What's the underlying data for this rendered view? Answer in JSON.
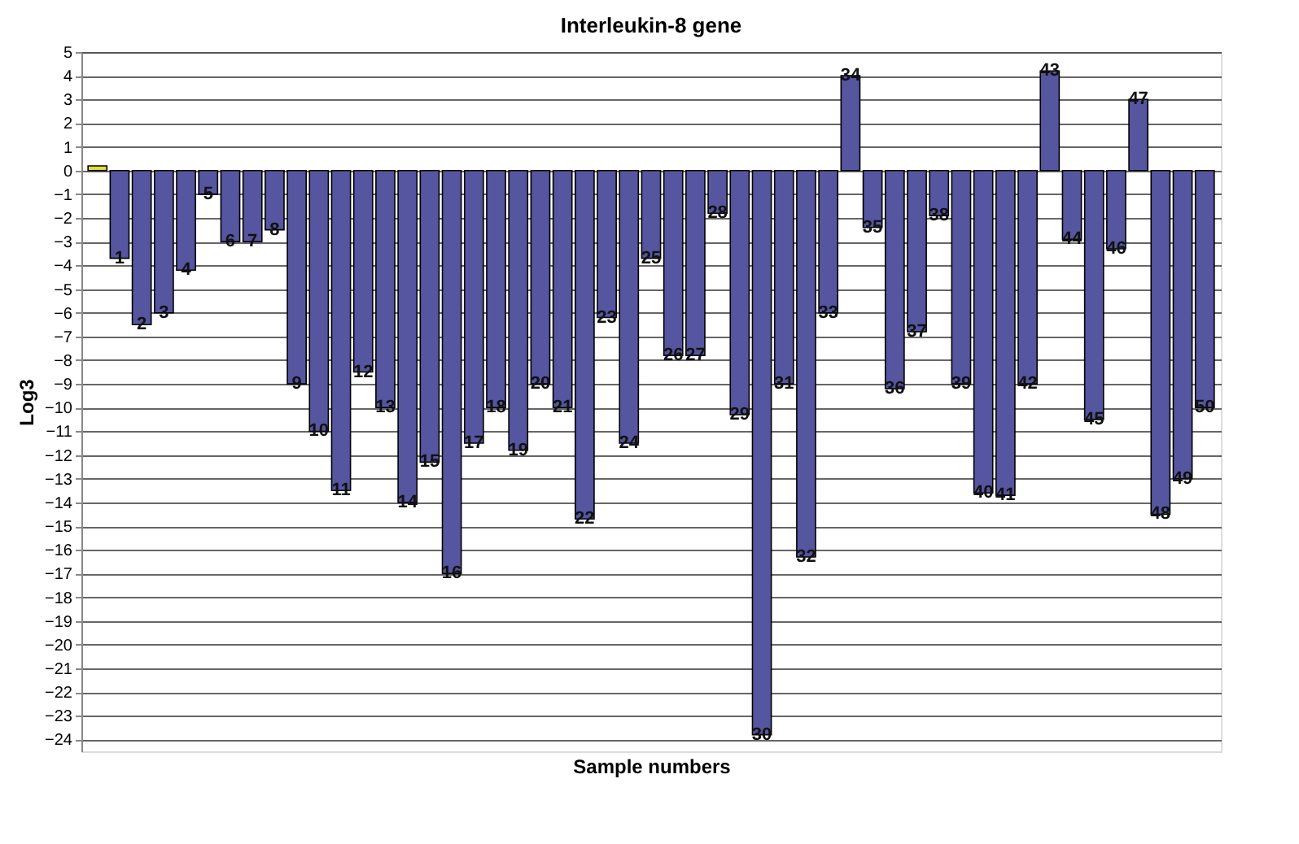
{
  "chart_data": {
    "type": "bar",
    "title": "Interleukin-8 gene",
    "xlabel": "Sample numbers",
    "ylabel": "Log3",
    "categories": [
      null,
      "1",
      "2",
      "3",
      "4",
      "5",
      "6",
      "7",
      "8",
      "9",
      "10",
      "11",
      "12",
      "13",
      "14",
      "15",
      "16",
      "17",
      "18",
      "19",
      "20",
      "21",
      "22",
      "23",
      "24",
      "25",
      "26",
      "27",
      "28",
      "29",
      "30",
      "31",
      "32",
      "33",
      "34",
      "35",
      "36",
      "37",
      "38",
      "39",
      "40",
      "41",
      "42",
      "43",
      "44",
      "45",
      "46",
      "47",
      "48",
      "49",
      "50"
    ],
    "values": [
      0.2,
      -3.7,
      -6.5,
      -6,
      -4.2,
      -1,
      -3,
      -3,
      -2.5,
      -9,
      -11,
      -13.5,
      -8.5,
      -10,
      -14,
      -12.3,
      -17,
      -11.5,
      -10,
      -11.8,
      -9,
      -10,
      -14.7,
      -6.2,
      -11.5,
      -3.7,
      -7.8,
      -7.8,
      -1.8,
      -10.3,
      -23.8,
      -9,
      -16.3,
      -6,
      4,
      -2.4,
      -9.2,
      -6.8,
      -1.9,
      -9,
      -13.6,
      -13.7,
      -9,
      4.2,
      -2.9,
      -10.5,
      -3.3,
      3,
      -14.5,
      -13,
      -10
    ],
    "colors": [
      "#e0dc3c",
      "#5555a0",
      "#5555a0",
      "#5555a0",
      "#5555a0",
      "#5555a0",
      "#5555a0",
      "#5555a0",
      "#5555a0",
      "#5555a0",
      "#5555a0",
      "#5555a0",
      "#5555a0",
      "#5555a0",
      "#5555a0",
      "#5555a0",
      "#5555a0",
      "#5555a0",
      "#5555a0",
      "#5555a0",
      "#5555a0",
      "#5555a0",
      "#5555a0",
      "#5555a0",
      "#5555a0",
      "#5555a0",
      "#5555a0",
      "#5555a0",
      "#5555a0",
      "#5555a0",
      "#5555a0",
      "#5555a0",
      "#5555a0",
      "#5555a0",
      "#5555a0",
      "#5555a0",
      "#5555a0",
      "#5555a0",
      "#5555a0",
      "#5555a0",
      "#5555a0",
      "#5555a0",
      "#5555a0",
      "#5555a0",
      "#5555a0",
      "#5555a0",
      "#5555a0",
      "#5555a0",
      "#5555a0",
      "#5555a0",
      "#5555a0"
    ],
    "ylim": [
      -24.5,
      5
    ],
    "yticks": [
      -24,
      -23,
      -22,
      -21,
      -20,
      -19,
      -18,
      -17,
      -16,
      -15,
      -14,
      -13,
      -12,
      -11,
      -10,
      -9,
      -8,
      -7,
      -6,
      -5,
      -4,
      -3,
      -2,
      -1,
      0,
      1,
      2,
      3,
      4,
      5
    ],
    "grid": "y",
    "tick_labels": "y"
  }
}
